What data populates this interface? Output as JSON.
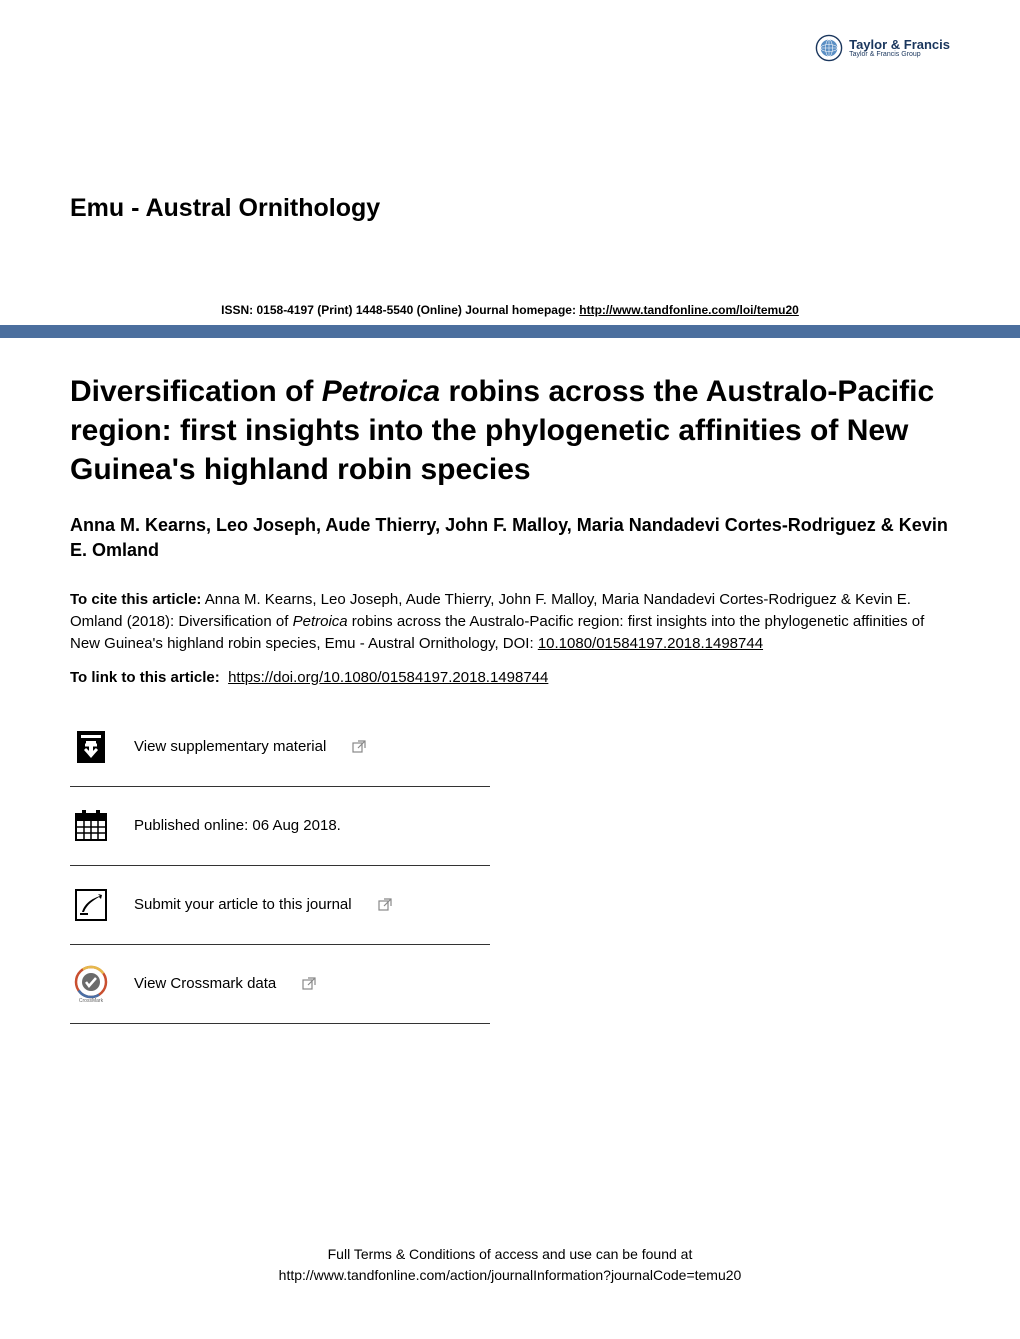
{
  "publisher": {
    "name": "Taylor & Francis",
    "tagline": "Taylor & Francis Group",
    "logo_colors": {
      "ring": "#1a365d",
      "globe": "#5a8fc4"
    }
  },
  "journal": {
    "title": "Emu - Austral Ornithology"
  },
  "issn_line": {
    "prefix": "ISSN: 0158-4197 (Print) 1448-5540 (Online) Journal homepage: ",
    "url_text": "http://www.tandfonline.com/loi/temu20",
    "url": "http://www.tandfonline.com/loi/temu20"
  },
  "divider_color": "#4b6f9e",
  "article": {
    "title_html": "Diversification of <em>Petroica</em> robins across the Australo-Pacific region: first insights into the phylogenetic affinities of New Guinea's highland robin species",
    "authors": "Anna M. Kearns, Leo Joseph, Aude Thierry, John F. Malloy, Maria Nandadevi Cortes-Rodriguez & Kevin E. Omland"
  },
  "citation": {
    "label": "To cite this article:",
    "text_html": " Anna M. Kearns, Leo Joseph, Aude Thierry, John F. Malloy, Maria Nandadevi Cortes-Rodriguez & Kevin E. Omland (2018): Diversification of <em>Petroica</em> robins across the Australo-Pacific region: first insights into the phylogenetic affinities of New Guinea's highland robin species, Emu - Austral Ornithology, DOI: <span class=\"doi-link\">10.1080/01584197.2018.1498744</span>"
  },
  "link": {
    "label": "To link to this article: ",
    "url_text": "https://doi.org/10.1080/01584197.2018.1498744",
    "url": "https://doi.org/10.1080/01584197.2018.1498744"
  },
  "actions": [
    {
      "id": "supplementary",
      "label": "View supplementary material ",
      "has_external": true
    },
    {
      "id": "published",
      "label": "Published online: 06 Aug 2018.",
      "has_external": false
    },
    {
      "id": "submit",
      "label": "Submit your article to this journal ",
      "has_external": true
    },
    {
      "id": "crossmark",
      "label": "View Crossmark data",
      "has_external": true
    }
  ],
  "footer": {
    "line1": "Full Terms & Conditions of access and use can be found at",
    "url_text": "http://www.tandfonline.com/action/journalInformation?journalCode=temu20",
    "url": "http://www.tandfonline.com/action/journalInformation?journalCode=temu20"
  },
  "colors": {
    "text": "#000000",
    "background": "#ffffff",
    "border": "#333333",
    "icon_fill": "#000000"
  },
  "typography": {
    "journal_title_fontsize": 25,
    "article_title_fontsize": 30,
    "authors_fontsize": 18,
    "body_fontsize": 15,
    "issn_fontsize": 12,
    "footer_fontsize": 14
  }
}
